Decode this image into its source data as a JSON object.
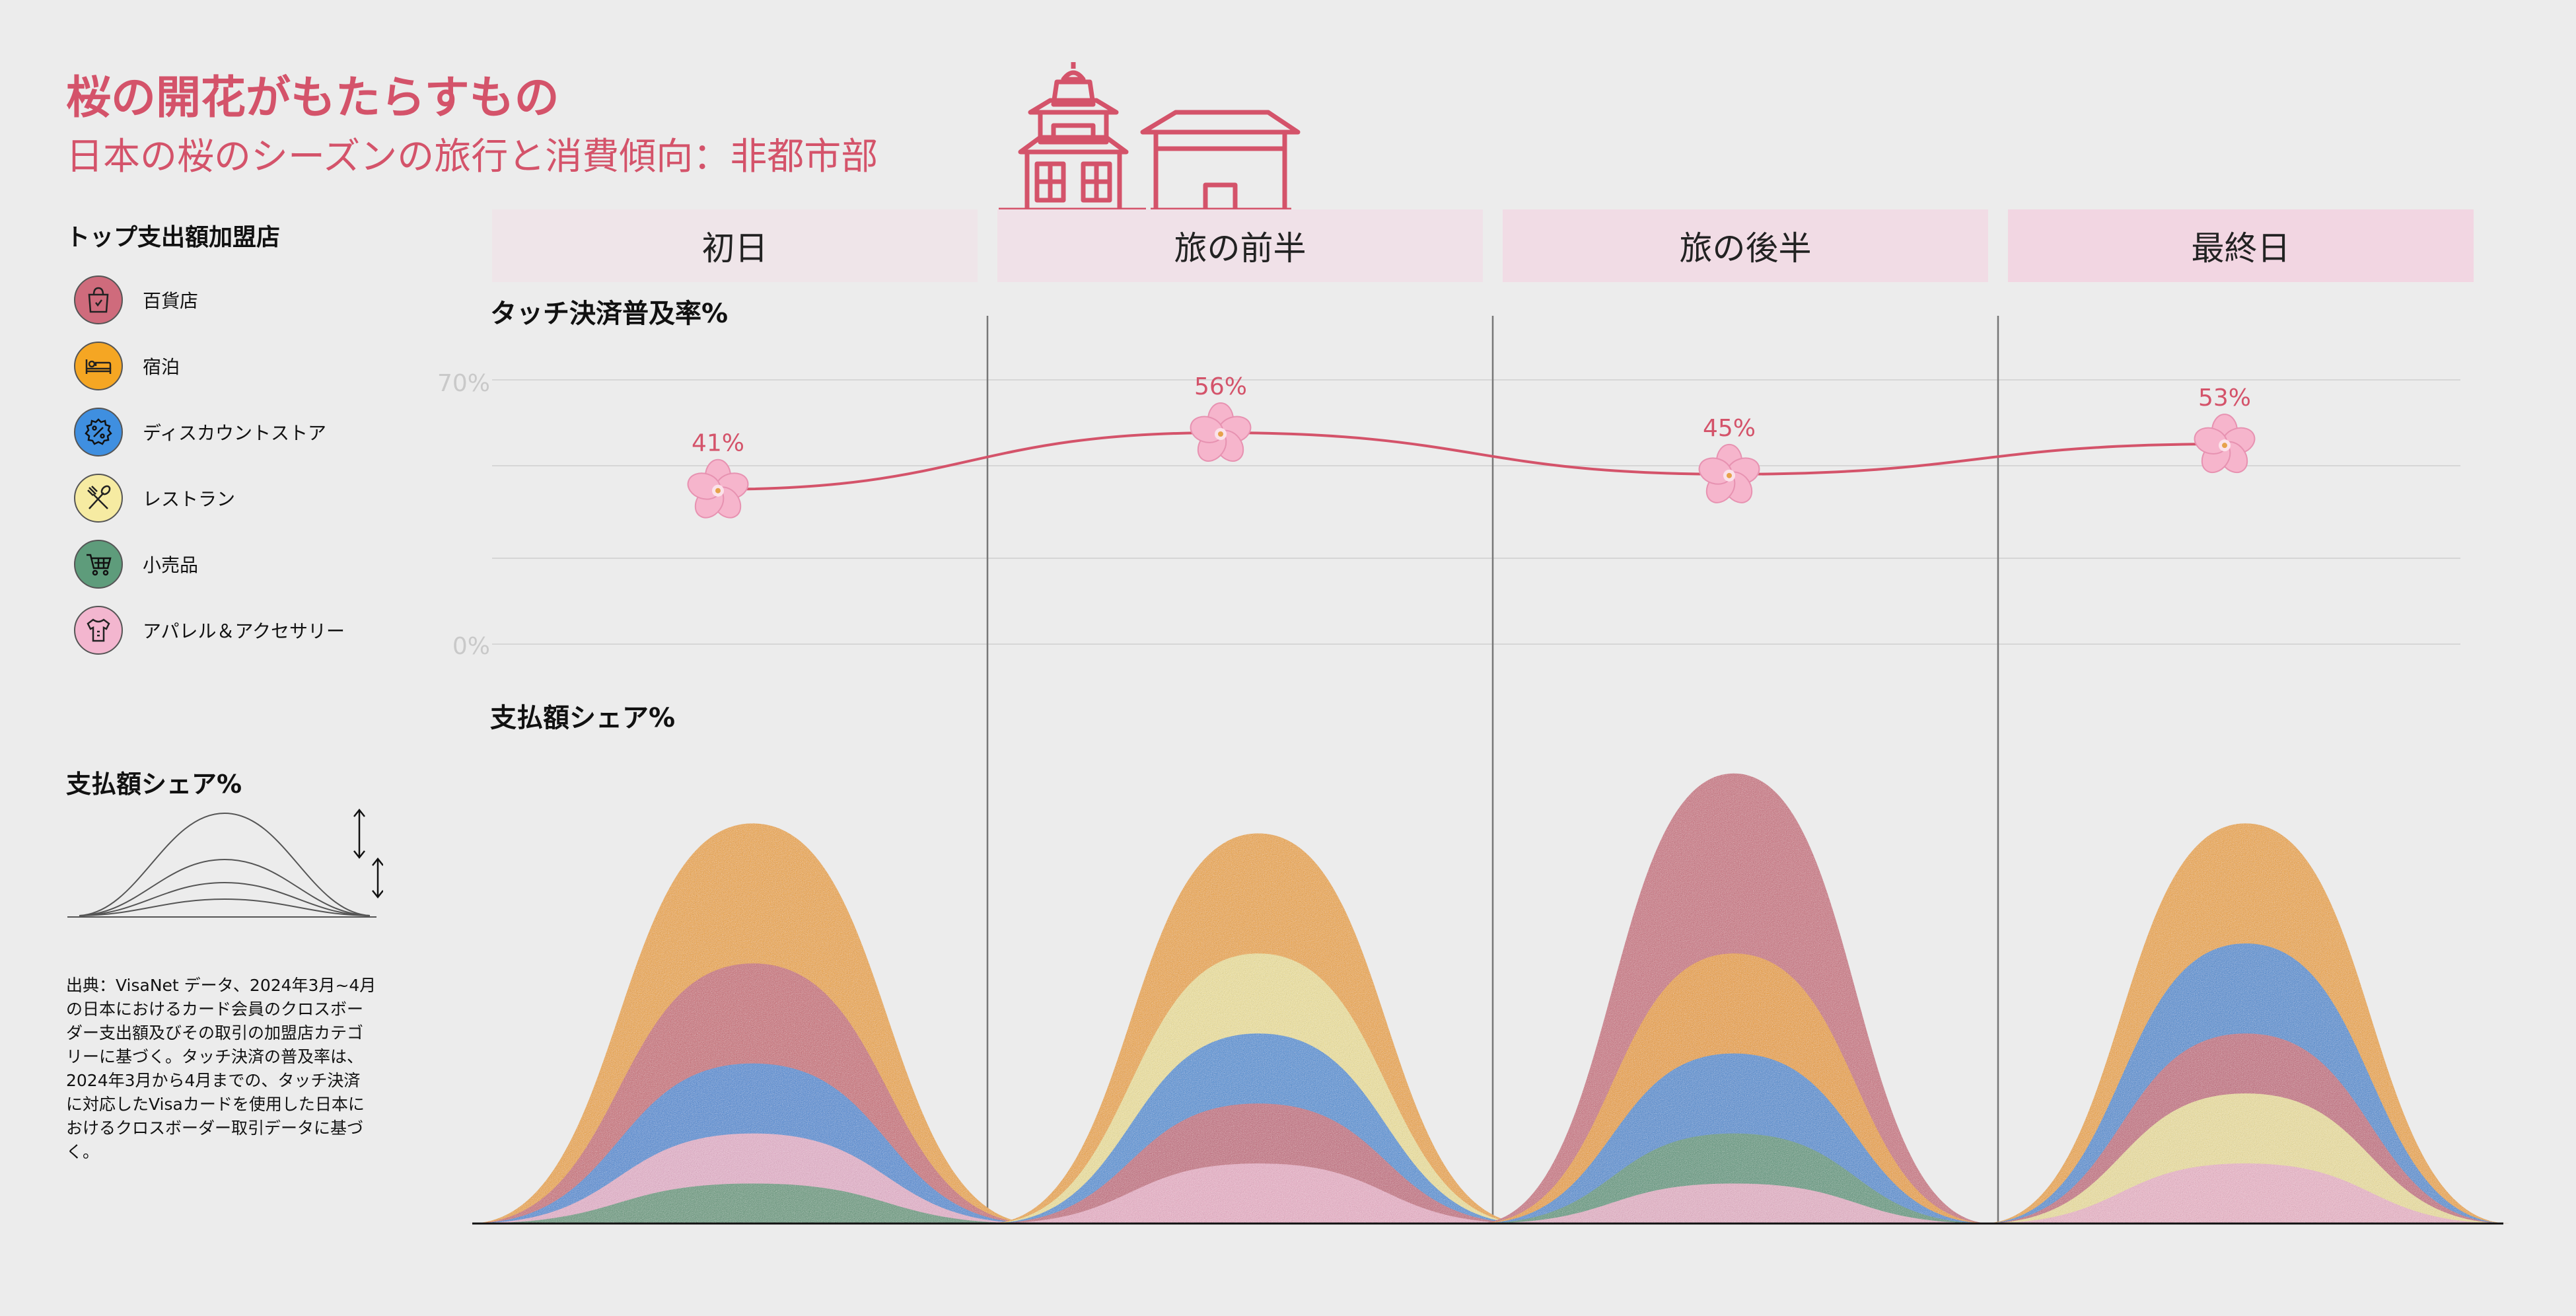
{
  "title": "桜の開花がもたらすもの",
  "subtitle": "日本の桜のシーズンの旅行と消費傾向：非都市部",
  "legend_title": "トップ支出額加盟店",
  "legend": [
    {
      "label": "百貨店",
      "color": "#cf6b7c",
      "icon": "shopping-bag-icon"
    },
    {
      "label": "宿泊",
      "color": "#f5a623",
      "icon": "bed-icon"
    },
    {
      "label": "ディスカウントストア",
      "color": "#3f8fe0",
      "icon": "discount-badge-icon"
    },
    {
      "label": "レストラン",
      "color": "#f6eba2",
      "icon": "fork-spoon-icon"
    },
    {
      "label": "小売品",
      "color": "#5e9c7b",
      "icon": "shopping-cart-icon"
    },
    {
      "label": "アパレル＆アクセサリー",
      "color": "#f3b6cf",
      "icon": "clothing-icon"
    }
  ],
  "share_legend_title": "支払額シェア%",
  "source": "出典：VisaNet データ、2024年3月~4月の日本におけるカード会員のクロスボーダー支出額及びその取引の加盟店カテゴリーに基づく。タッチ決済の普及率は、2024年3月から4月までの、タッチ決済に対応したVisaカードを使用した日本におけるクロスボーダー取引データに基づく。",
  "accent_color": "#d4536a",
  "chart_data": {
    "type": "area",
    "phases": [
      "初日",
      "旅の前半",
      "旅の後半",
      "最終日"
    ],
    "contactless": {
      "title": "タッチ決済普及率%",
      "y_ticks": [
        "70%",
        "0%"
      ],
      "ylim": [
        0,
        70
      ],
      "values": [
        41,
        56,
        45,
        53
      ],
      "labels": [
        "41%",
        "56%",
        "45%",
        "53%"
      ]
    },
    "spend_share": {
      "title": "支払額シェア%",
      "ylim": [
        0,
        50
      ],
      "stacks": [
        [
          {
            "category": "宿泊",
            "value": 40,
            "color": "#f5a623"
          },
          {
            "category": "百貨店",
            "value": 26,
            "color": "#cf6b7c"
          },
          {
            "category": "ディスカウントストア",
            "value": 16,
            "color": "#3f8fe0"
          },
          {
            "category": "アパレル＆アクセサリー",
            "value": 9,
            "color": "#f3b6cf"
          },
          {
            "category": "小売品",
            "value": 4,
            "color": "#5e9c7b"
          }
        ],
        [
          {
            "category": "宿泊",
            "value": 39,
            "color": "#f5a623"
          },
          {
            "category": "レストラン",
            "value": 27,
            "color": "#f6eba2"
          },
          {
            "category": "ディスカウントストア",
            "value": 19,
            "color": "#3f8fe0"
          },
          {
            "category": "百貨店",
            "value": 12,
            "color": "#cf6b7c"
          },
          {
            "category": "アパレル＆アクセサリー",
            "value": 6,
            "color": "#f3b6cf"
          }
        ],
        [
          {
            "category": "百貨店",
            "value": 45,
            "color": "#cf6b7c"
          },
          {
            "category": "宿泊",
            "value": 27,
            "color": "#f5a623"
          },
          {
            "category": "ディスカウントストア",
            "value": 17,
            "color": "#3f8fe0"
          },
          {
            "category": "小売品",
            "value": 9,
            "color": "#5e9c7b"
          },
          {
            "category": "アパレル＆アクセサリー",
            "value": 4,
            "color": "#f3b6cf"
          }
        ],
        [
          {
            "category": "宿泊",
            "value": 40,
            "color": "#f5a623"
          },
          {
            "category": "ディスカウントストア",
            "value": 28,
            "color": "#3f8fe0"
          },
          {
            "category": "百貨店",
            "value": 19,
            "color": "#cf6b7c"
          },
          {
            "category": "レストラン",
            "value": 13,
            "color": "#f6eba2"
          },
          {
            "category": "アパレル＆アクセサリー",
            "value": 6,
            "color": "#f3b6cf"
          }
        ]
      ]
    }
  }
}
